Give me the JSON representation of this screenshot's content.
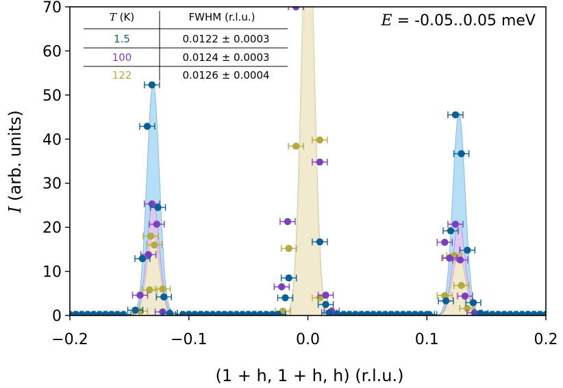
{
  "chart_data": {
    "type": "scatter",
    "xlabel": "(1 + h, 1 + h, h) (r.l.u.)",
    "ylabel_symbol": "I",
    "ylabel_unit": "(arb. units)",
    "xlim": [
      -0.2,
      0.2
    ],
    "ylim": [
      0,
      70
    ],
    "xticks": [
      -0.2,
      -0.1,
      0.0,
      0.1,
      0.2
    ],
    "xtick_labels": [
      "−0.2",
      "−0.1",
      "0.0",
      "0.1",
      "0.2"
    ],
    "yticks": [
      0,
      10,
      20,
      30,
      40,
      50,
      60,
      70
    ],
    "ytick_labels": [
      "0",
      "10",
      "20",
      "30",
      "40",
      "50",
      "60",
      "70"
    ],
    "energy_symbol": "E",
    "energy_value": "= -0.05..0.05 meV",
    "legend_table": {
      "col1_header_symbol": "T",
      "col1_header_unit": "(K)",
      "col2_header": "FWHM (r.l.u.)",
      "rows": [
        {
          "T": "1.5",
          "fwhm": "0.0122 ± 0.0003",
          "color": "#0a5f96"
        },
        {
          "T": "100",
          "fwhm": "0.0124 ± 0.0003",
          "color": "#7e3fbf"
        },
        {
          "T": "122",
          "fwhm": "0.0126 ± 0.0004",
          "color": "#b3aa40"
        }
      ]
    },
    "peaks": [
      -0.13,
      0.0,
      0.127
    ],
    "series": [
      {
        "name": "1.5 K",
        "color": "#0a5f96",
        "fill": "#a8d8f6",
        "fit_heights": [
          53,
          95,
          46
        ],
        "points": [
          {
            "x": -0.145,
            "y": 1.2
          },
          {
            "x": -0.139,
            "y": 12.9
          },
          {
            "x": -0.135,
            "y": 42.9
          },
          {
            "x": -0.131,
            "y": 52.3
          },
          {
            "x": -0.126,
            "y": 24.5
          },
          {
            "x": -0.121,
            "y": 4.2
          },
          {
            "x": -0.116,
            "y": 0.5
          },
          {
            "x": -0.016,
            "y": 8.5
          },
          {
            "x": -0.019,
            "y": 4.0
          },
          {
            "x": 0.01,
            "y": 16.7
          },
          {
            "x": 0.015,
            "y": 2.5
          },
          {
            "x": 0.018,
            "y": 0.6
          },
          {
            "x": 0.102,
            "y": 0.2
          },
          {
            "x": 0.116,
            "y": 3.3
          },
          {
            "x": 0.12,
            "y": 19.2
          },
          {
            "x": 0.124,
            "y": 45.5
          },
          {
            "x": 0.129,
            "y": 36.7
          },
          {
            "x": 0.134,
            "y": 14.8
          },
          {
            "x": 0.139,
            "y": 2.9
          },
          {
            "x": 0.145,
            "y": 0.5
          }
        ]
      },
      {
        "name": "100 K",
        "color": "#7e3fbf",
        "fill": "#e6c3f0",
        "fit_heights": [
          26,
          80,
          21
        ],
        "points": [
          {
            "x": -0.141,
            "y": 4.6
          },
          {
            "x": -0.134,
            "y": 13.8
          },
          {
            "x": -0.131,
            "y": 25.3
          },
          {
            "x": -0.127,
            "y": 20.7
          },
          {
            "x": -0.122,
            "y": 0.8
          },
          {
            "x": -0.022,
            "y": 6.5
          },
          {
            "x": -0.017,
            "y": 21.3
          },
          {
            "x": -0.01,
            "y": 70.0
          },
          {
            "x": 0.01,
            "y": 34.8
          },
          {
            "x": 0.015,
            "y": 4.6
          },
          {
            "x": 0.02,
            "y": 1.0
          },
          {
            "x": 0.115,
            "y": 16.6
          },
          {
            "x": 0.119,
            "y": 13.0
          },
          {
            "x": 0.124,
            "y": 20.7
          },
          {
            "x": 0.128,
            "y": 12.6
          },
          {
            "x": 0.132,
            "y": 4.4
          },
          {
            "x": 0.14,
            "y": 0.6
          }
        ]
      },
      {
        "name": "122 K",
        "color": "#b3aa40",
        "fill": "#f5f0c8",
        "fit_heights": [
          18,
          100,
          14
        ],
        "points": [
          {
            "x": -0.141,
            "y": 1.0
          },
          {
            "x": -0.132,
            "y": 18.0
          },
          {
            "x": -0.133,
            "y": 5.8
          },
          {
            "x": -0.129,
            "y": 16.0
          },
          {
            "x": -0.122,
            "y": 6.0
          },
          {
            "x": -0.021,
            "y": 1.0
          },
          {
            "x": -0.016,
            "y": 15.2
          },
          {
            "x": -0.01,
            "y": 38.4
          },
          {
            "x": 0.01,
            "y": 39.8
          },
          {
            "x": 0.01,
            "y": 4.0
          },
          {
            "x": 0.115,
            "y": 4.5
          },
          {
            "x": 0.12,
            "y": 13.2
          },
          {
            "x": 0.123,
            "y": 13.6
          },
          {
            "x": 0.129,
            "y": 6.8
          },
          {
            "x": 0.134,
            "y": 1.6
          }
        ]
      }
    ]
  }
}
